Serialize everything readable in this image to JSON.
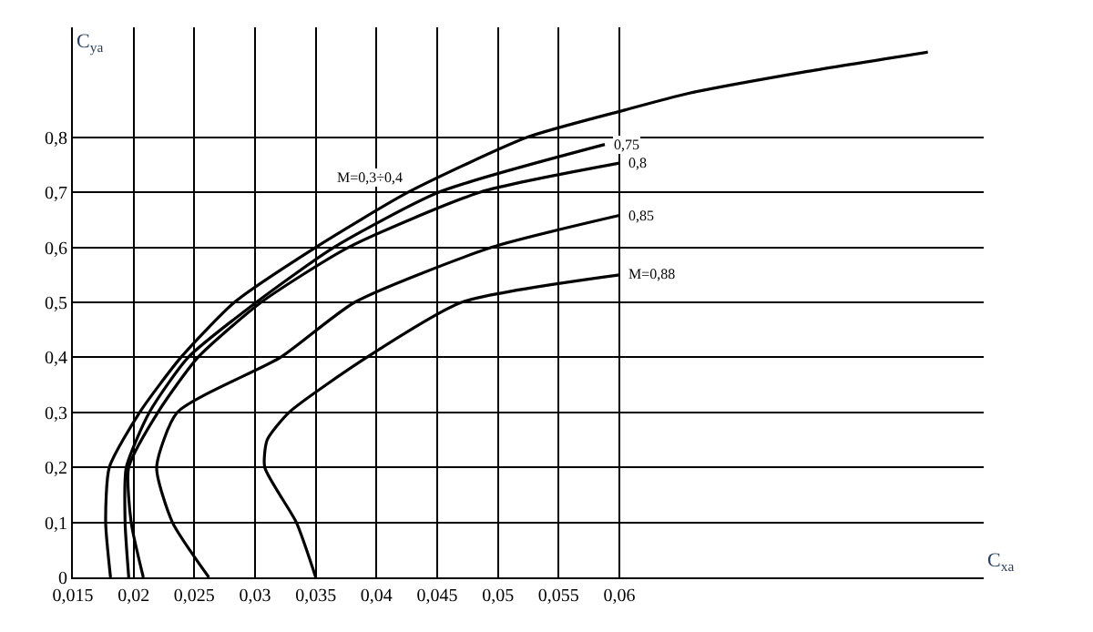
{
  "chart_data": {
    "type": "line",
    "xlabel": "C$_{xa}$",
    "ylabel": "C$_{ya}$",
    "xlim": [
      0.015,
      0.09
    ],
    "ylim": [
      0,
      1.0
    ],
    "xticks": [
      {
        "value": 0.015,
        "label": "0,015"
      },
      {
        "value": 0.02,
        "label": "0,02"
      },
      {
        "value": 0.025,
        "label": "0,025"
      },
      {
        "value": 0.03,
        "label": "0,03"
      },
      {
        "value": 0.035,
        "label": "0,035"
      },
      {
        "value": 0.04,
        "label": "0,04"
      },
      {
        "value": 0.045,
        "label": "0,045"
      },
      {
        "value": 0.05,
        "label": "0,05"
      },
      {
        "value": 0.055,
        "label": "0,055"
      },
      {
        "value": 0.06,
        "label": "0,06"
      }
    ],
    "yticks": [
      0,
      {
        "value": 0.1,
        "label": "0,1"
      },
      {
        "value": 0.2,
        "label": "0,2"
      },
      {
        "value": 0.3,
        "label": "0,3"
      },
      {
        "value": 0.4,
        "label": "0,4"
      },
      {
        "value": 0.5,
        "label": "0,5"
      },
      {
        "value": 0.6,
        "label": "0,6"
      },
      {
        "value": 0.7,
        "label": "0,7"
      },
      {
        "value": 0.8,
        "label": "0,8"
      }
    ],
    "grid": true,
    "legend": false,
    "marker": "none",
    "line_style": "solid",
    "series": [
      {
        "color": "#000000",
        "x": [
          0.0181,
          0.0177,
          0.018,
          0.0205,
          0.0239,
          0.0283,
          0.035,
          0.0426,
          0.0524,
          0.0605,
          0.0657,
          0.0755,
          0.0854
        ],
        "values": [
          0,
          0.1,
          0.2,
          0.3,
          0.4,
          0.5,
          0.6,
          0.7,
          0.8,
          0.85,
          0.88,
          0.92,
          0.955
        ]
      },
      {
        "color": "#000000",
        "x": [
          0.0196,
          0.0193,
          0.0194,
          0.0213,
          0.0245,
          0.0301,
          0.0365,
          0.0451,
          0.0588
        ],
        "values": [
          0,
          0.1,
          0.2,
          0.3,
          0.4,
          0.5,
          0.6,
          0.7,
          0.787
        ]
      },
      {
        "color": "#000000",
        "x": [
          0.0208,
          0.0198,
          0.0196,
          0.022,
          0.0253,
          0.0305,
          0.0377,
          0.0485,
          0.06
        ],
        "values": [
          0,
          0.1,
          0.2,
          0.3,
          0.4,
          0.5,
          0.6,
          0.7,
          0.753
        ]
      },
      {
        "color": "#000000",
        "x": [
          0.0262,
          0.0232,
          0.0219,
          0.0236,
          0.0321,
          0.0382,
          0.0495,
          0.06
        ],
        "values": [
          0,
          0.1,
          0.2,
          0.3,
          0.4,
          0.5,
          0.6,
          0.658
        ]
      },
      {
        "color": "#000000",
        "x": [
          0.035,
          0.0334,
          0.0308,
          0.031,
          0.0328,
          0.0392,
          0.047,
          0.06
        ],
        "values": [
          0,
          0.1,
          0.2,
          0.25,
          0.3,
          0.4,
          0.5,
          0.55
        ]
      }
    ],
    "annotations": [
      {
        "text": "M=0,3÷0,4",
        "x": 0.0426,
        "y": 0.7
      },
      {
        "text": "0,75",
        "x": 0.0588,
        "y": 0.787
      },
      {
        "text": "0,8",
        "x": 0.06,
        "y": 0.753
      },
      {
        "text": "0,85",
        "x": 0.06,
        "y": 0.658
      },
      {
        "text": "M=0,88",
        "x": 0.06,
        "y": 0.55
      }
    ]
  }
}
